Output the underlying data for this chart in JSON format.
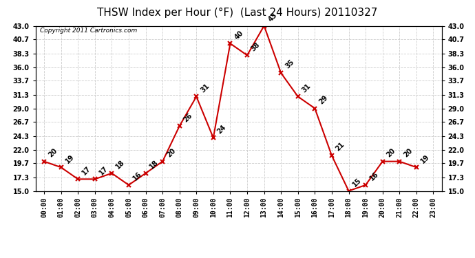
{
  "title": "THSW Index per Hour (°F)  (Last 24 Hours) 20110327",
  "copyright": "Copyright 2011 Cartronics.com",
  "hours": [
    "00:00",
    "01:00",
    "02:00",
    "03:00",
    "04:00",
    "05:00",
    "06:00",
    "07:00",
    "08:00",
    "09:00",
    "10:00",
    "11:00",
    "12:00",
    "13:00",
    "14:00",
    "15:00",
    "16:00",
    "17:00",
    "18:00",
    "19:00",
    "20:00",
    "21:00",
    "22:00",
    "23:00"
  ],
  "values": [
    20,
    19,
    17,
    17,
    18,
    16,
    18,
    20,
    26,
    31,
    24,
    40,
    38,
    43,
    35,
    31,
    29,
    21,
    15,
    16,
    20,
    20,
    19,
    null
  ],
  "ylim": [
    15.0,
    43.0
  ],
  "yticks": [
    15.0,
    17.3,
    19.7,
    22.0,
    24.3,
    26.7,
    29.0,
    31.3,
    33.7,
    36.0,
    38.3,
    40.7,
    43.0
  ],
  "line_color": "#cc0000",
  "marker": "x",
  "marker_color": "#cc0000",
  "bg_color": "#ffffff",
  "grid_color": "#cccccc",
  "title_fontsize": 11,
  "copyright_fontsize": 6.5,
  "tick_fontsize": 7,
  "annot_fontsize": 7
}
